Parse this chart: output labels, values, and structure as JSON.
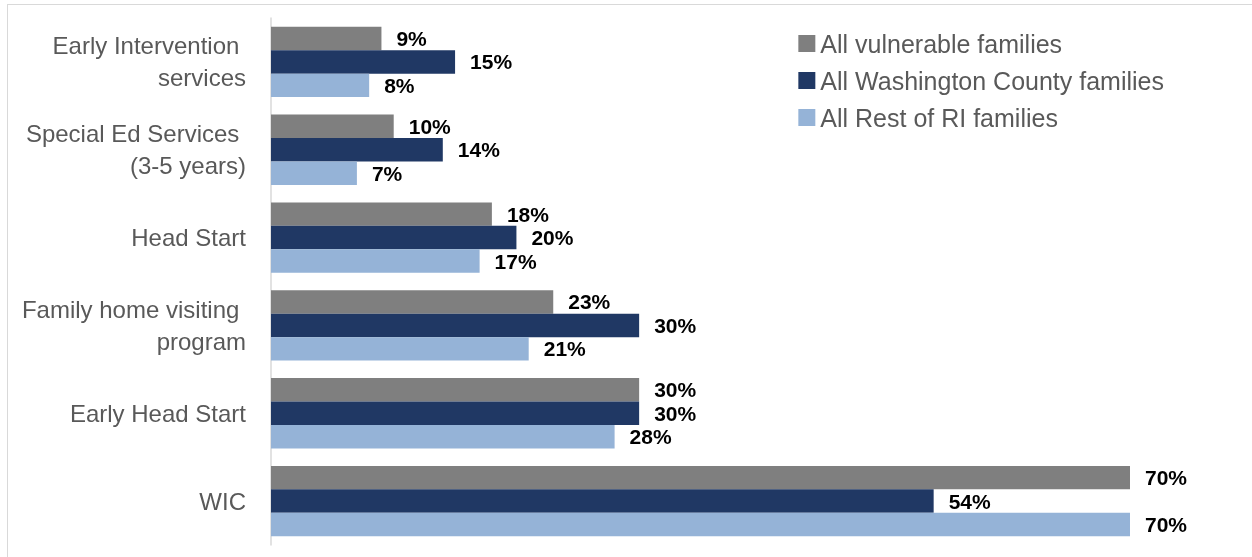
{
  "chart_data": {
    "type": "bar",
    "orientation": "horizontal",
    "categories": [
      "Early Intervention services",
      "Special Ed Services (3-5 years)",
      "Head Start",
      "Family home visiting program",
      "Early Head Start",
      "WIC"
    ],
    "series": [
      {
        "name": "All vulnerable families",
        "color": "#7f7f7f",
        "values": [
          9,
          10,
          18,
          23,
          30,
          70
        ],
        "value_labels": [
          "9%",
          "10%",
          "18%",
          "23%",
          "30%",
          "70%"
        ]
      },
      {
        "name": "All Washington County families",
        "color": "#203864",
        "values": [
          15,
          14,
          20,
          30,
          30,
          54
        ],
        "value_labels": [
          "15%",
          "14%",
          "20%",
          "30%",
          "30%",
          "54%"
        ]
      },
      {
        "name": "All Rest of RI families",
        "color": "#95b3d7",
        "values": [
          8,
          7,
          17,
          21,
          28,
          70
        ],
        "value_labels": [
          "8%",
          "7%",
          "17%",
          "21%",
          "28%",
          "70%"
        ]
      }
    ],
    "legend": "top right",
    "grid": false,
    "tick_labels": "y"
  }
}
